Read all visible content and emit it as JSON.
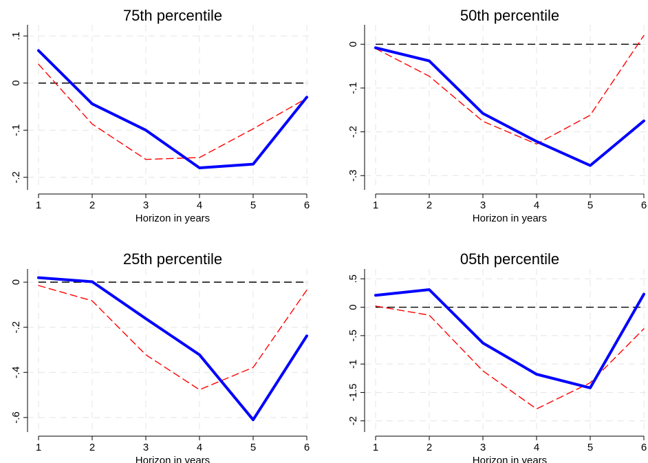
{
  "chart_data": [
    {
      "type": "line",
      "title": "75th percentile",
      "xlabel": "Horizon in years",
      "ylabel": "",
      "x": [
        1,
        2,
        3,
        4,
        5,
        6
      ],
      "xticks": [
        "1",
        "2",
        "3",
        "4",
        "5",
        "6"
      ],
      "yticks": [
        0.1,
        0,
        -0.1,
        -0.2
      ],
      "ytick_labels": [
        ".1",
        "0",
        "-.1",
        "-.2"
      ],
      "ylim": [
        -0.215,
        0.115
      ],
      "grid": true,
      "reference_line": 0,
      "series": [
        {
          "color": "#0000ff",
          "style": "solid",
          "values": [
            0.069,
            -0.044,
            -0.1,
            -0.18,
            -0.172,
            -0.03
          ]
        },
        {
          "color": "#ff0000",
          "style": "dashed",
          "values": [
            0.04,
            -0.087,
            -0.162,
            -0.158,
            -0.097,
            -0.032
          ]
        }
      ]
    },
    {
      "type": "line",
      "title": "50th percentile",
      "xlabel": "Horizon in years",
      "ylabel": "",
      "x": [
        1,
        2,
        3,
        4,
        5,
        6
      ],
      "xticks": [
        "1",
        "2",
        "3",
        "4",
        "5",
        "6"
      ],
      "yticks": [
        0,
        -0.1,
        -0.2,
        -0.3
      ],
      "ytick_labels": [
        "0",
        "-.1",
        "-.2",
        "-.3"
      ],
      "ylim": [
        -0.32,
        0.035
      ],
      "grid": true,
      "reference_line": 0,
      "series": [
        {
          "color": "#0000ff",
          "style": "solid",
          "values": [
            -0.008,
            -0.038,
            -0.158,
            -0.222,
            -0.277,
            -0.175
          ]
        },
        {
          "color": "#ff0000",
          "style": "dashed",
          "values": [
            -0.01,
            -0.073,
            -0.176,
            -0.228,
            -0.162,
            0.02
          ]
        }
      ]
    },
    {
      "type": "line",
      "title": "25th percentile",
      "xlabel": "Horizon in years",
      "ylabel": "",
      "x": [
        1,
        2,
        3,
        4,
        5,
        6
      ],
      "xticks": [
        "1",
        "2",
        "3",
        "4",
        "5",
        "6"
      ],
      "yticks": [
        0,
        -0.2,
        -0.4,
        -0.6
      ],
      "ytick_labels": [
        "0",
        "-.2",
        "-.4",
        "-.6"
      ],
      "ylim": [
        -0.64,
        0.04
      ],
      "grid": true,
      "reference_line": 0,
      "series": [
        {
          "color": "#0000ff",
          "style": "solid",
          "values": [
            0.02,
            0.002,
            -0.162,
            -0.322,
            -0.61,
            -0.238
          ]
        },
        {
          "color": "#ff0000",
          "style": "dashed",
          "values": [
            -0.015,
            -0.083,
            -0.322,
            -0.477,
            -0.378,
            -0.035
          ]
        }
      ]
    },
    {
      "type": "line",
      "title": "05th percentile",
      "xlabel": "Horizon in years",
      "ylabel": "",
      "x": [
        1,
        2,
        3,
        4,
        5,
        6
      ],
      "xticks": [
        "1",
        "2",
        "3",
        "4",
        "5",
        "6"
      ],
      "yticks": [
        0.5,
        0,
        -0.5,
        -1,
        -1.5,
        -2
      ],
      "ytick_labels": [
        ".5",
        "0",
        "-.5",
        "-1",
        "-1.5",
        "-2"
      ],
      "ylim": [
        -2.1,
        0.6
      ],
      "grid": true,
      "reference_line": 0,
      "series": [
        {
          "color": "#0000ff",
          "style": "solid",
          "values": [
            0.21,
            0.31,
            -0.63,
            -1.18,
            -1.42,
            0.23
          ]
        },
        {
          "color": "#ff0000",
          "style": "dashed",
          "values": [
            0.02,
            -0.14,
            -1.12,
            -1.79,
            -1.33,
            -0.38
          ]
        }
      ]
    }
  ]
}
